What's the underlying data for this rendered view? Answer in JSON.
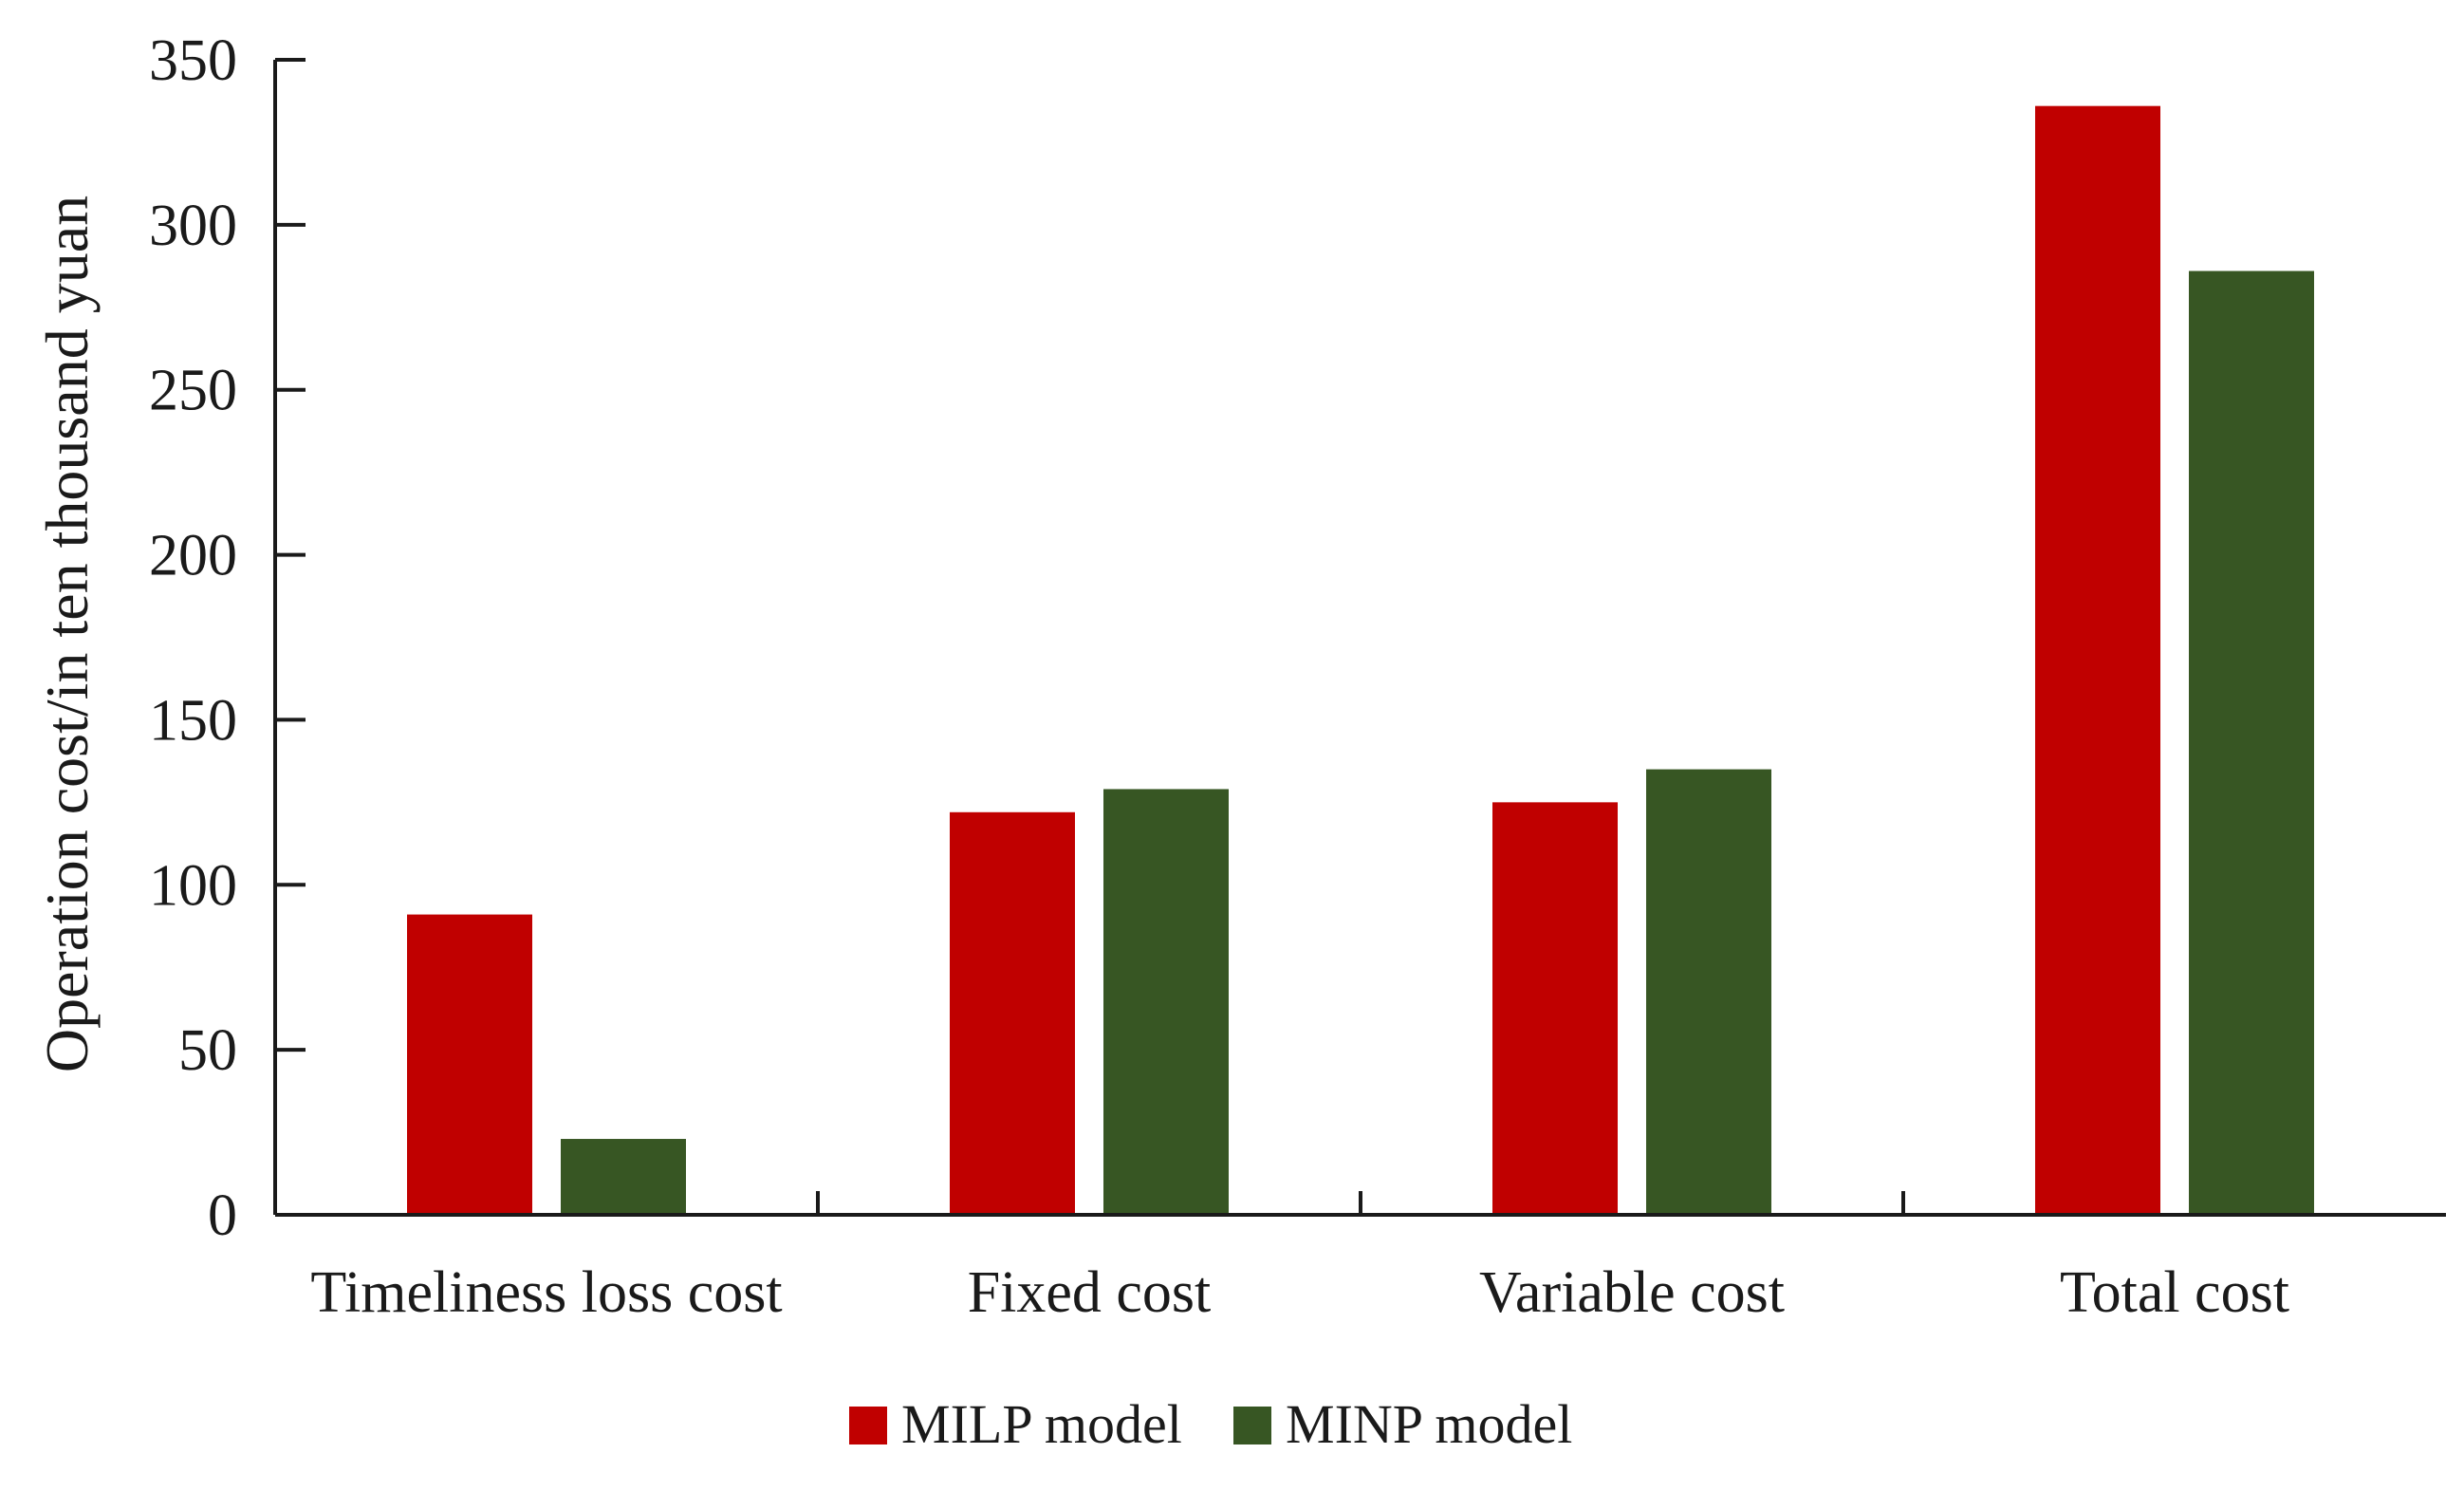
{
  "chart_data": {
    "type": "bar",
    "title": "",
    "xlabel": "",
    "ylabel": "Operation cost/in ten thousand yuan",
    "ylim": [
      0,
      350
    ],
    "yticks": [
      0,
      50,
      100,
      150,
      200,
      250,
      300,
      350
    ],
    "categories": [
      "Timeliness loss cost",
      "Fixed cost",
      "Variable cost",
      "Total cost"
    ],
    "series": [
      {
        "name": "MILP model",
        "color": "#c00000",
        "values": [
          91,
          122,
          125,
          336
        ]
      },
      {
        "name": "MINP model",
        "color": "#375623",
        "values": [
          23,
          129,
          135,
          286
        ]
      }
    ],
    "grid": false,
    "legend": "bottom-center"
  }
}
